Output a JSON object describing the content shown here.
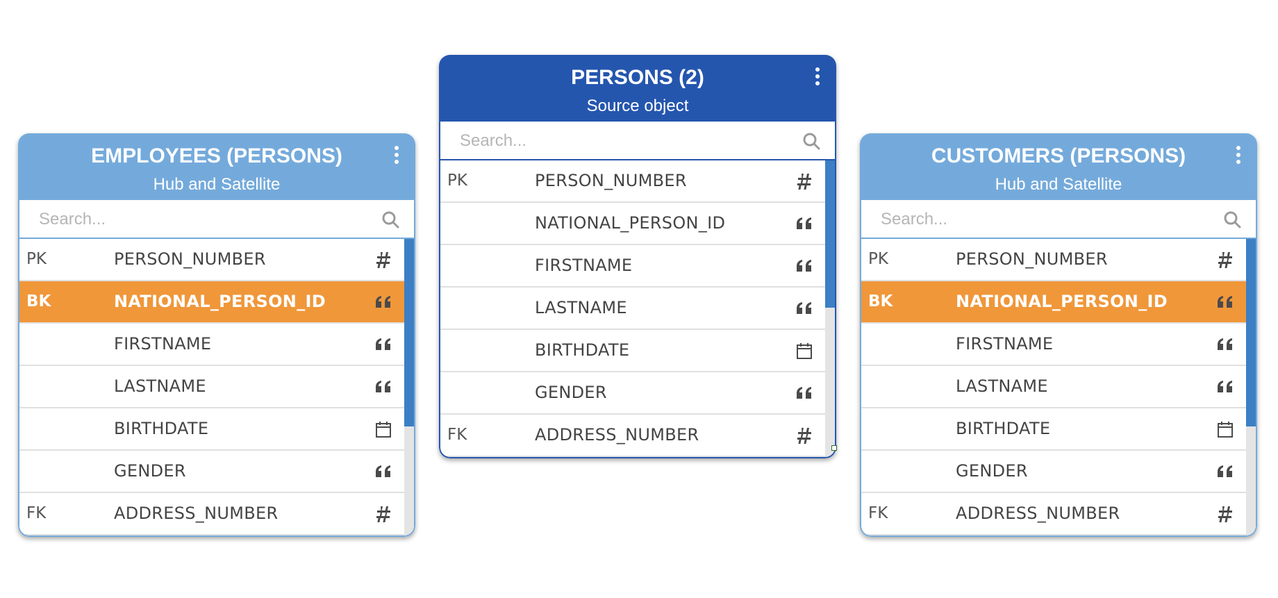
{
  "search_placeholder": "Search...",
  "colors": {
    "light_header": "#74aadb",
    "dark_header": "#2556ae",
    "business_key_highlight": "#f0973a"
  },
  "cards": [
    {
      "title": "EMPLOYEES (PERSONS)",
      "subtitle": "Hub and Satellite",
      "rows": [
        {
          "key": "PK",
          "name": "PERSON_NUMBER",
          "icon": "hash-icon"
        },
        {
          "key": "BK",
          "name": "NATIONAL_PERSON_ID",
          "icon": "quote-icon"
        },
        {
          "key": "",
          "name": "FIRSTNAME",
          "icon": "quote-icon"
        },
        {
          "key": "",
          "name": "LASTNAME",
          "icon": "quote-icon"
        },
        {
          "key": "",
          "name": "BIRTHDATE",
          "icon": "calendar-icon"
        },
        {
          "key": "",
          "name": "GENDER",
          "icon": "quote-icon"
        },
        {
          "key": "FK",
          "name": "ADDRESS_NUMBER",
          "icon": "hash-icon"
        }
      ]
    },
    {
      "title": "PERSONS (2)",
      "subtitle": "Source object",
      "rows": [
        {
          "key": "PK",
          "name": "PERSON_NUMBER",
          "icon": "hash-icon"
        },
        {
          "key": "",
          "name": "NATIONAL_PERSON_ID",
          "icon": "quote-icon"
        },
        {
          "key": "",
          "name": "FIRSTNAME",
          "icon": "quote-icon"
        },
        {
          "key": "",
          "name": "LASTNAME",
          "icon": "quote-icon"
        },
        {
          "key": "",
          "name": "BIRTHDATE",
          "icon": "calendar-icon"
        },
        {
          "key": "",
          "name": "GENDER",
          "icon": "quote-icon"
        },
        {
          "key": "FK",
          "name": "ADDRESS_NUMBER",
          "icon": "hash-icon"
        }
      ]
    },
    {
      "title": "CUSTOMERS (PERSONS)",
      "subtitle": "Hub and Satellite",
      "rows": [
        {
          "key": "PK",
          "name": "PERSON_NUMBER",
          "icon": "hash-icon"
        },
        {
          "key": "BK",
          "name": "NATIONAL_PERSON_ID",
          "icon": "quote-icon"
        },
        {
          "key": "",
          "name": "FIRSTNAME",
          "icon": "quote-icon"
        },
        {
          "key": "",
          "name": "LASTNAME",
          "icon": "quote-icon"
        },
        {
          "key": "",
          "name": "BIRTHDATE",
          "icon": "calendar-icon"
        },
        {
          "key": "",
          "name": "GENDER",
          "icon": "quote-icon"
        },
        {
          "key": "FK",
          "name": "ADDRESS_NUMBER",
          "icon": "hash-icon"
        }
      ]
    }
  ]
}
